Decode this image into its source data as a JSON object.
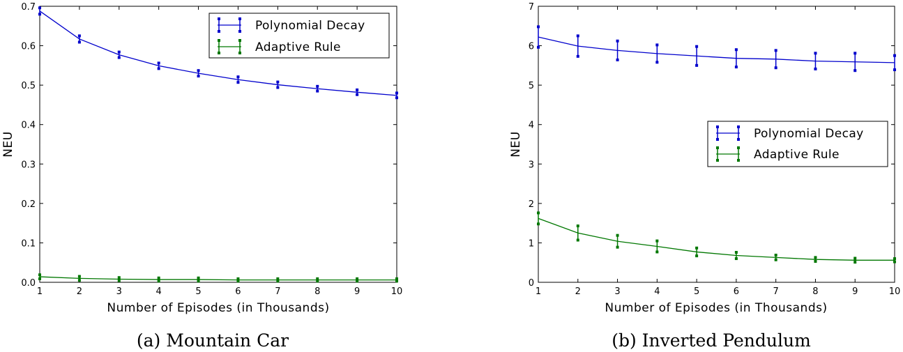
{
  "chart_data": [
    {
      "type": "line",
      "caption": "(a) Mountain Car",
      "xlabel": "Number of Episodes (in Thousands)",
      "ylabel": "NEU",
      "xlim": [
        1,
        10
      ],
      "ylim": [
        0,
        0.7
      ],
      "xticks": [
        "1",
        "2",
        "3",
        "4",
        "5",
        "6",
        "7",
        "8",
        "9",
        "10"
      ],
      "yticks": [
        "0.0",
        "0.1",
        "0.2",
        "0.3",
        "0.4",
        "0.5",
        "0.6",
        "0.7"
      ],
      "legend_position": "top-right",
      "x": [
        1,
        2,
        3,
        4,
        5,
        6,
        7,
        8,
        9,
        10
      ],
      "series": [
        {
          "name": "Polynomial Decay",
          "color": "#0000cc",
          "values": [
            0.688,
            0.617,
            0.577,
            0.549,
            0.53,
            0.514,
            0.501,
            0.491,
            0.482,
            0.474
          ],
          "errors": [
            0.008,
            0.008,
            0.007,
            0.007,
            0.007,
            0.007,
            0.007,
            0.006,
            0.006,
            0.006
          ]
        },
        {
          "name": "Adaptive Rule",
          "color": "#007700",
          "values": [
            0.014,
            0.01,
            0.008,
            0.007,
            0.007,
            0.006,
            0.006,
            0.006,
            0.006,
            0.006
          ],
          "errors": [
            0.005,
            0.005,
            0.004,
            0.004,
            0.004,
            0.003,
            0.003,
            0.003,
            0.003,
            0.003
          ]
        }
      ]
    },
    {
      "type": "line",
      "caption": "(b) Inverted Pendulum",
      "xlabel": "Number of Episodes (in Thousands)",
      "ylabel": "NEU",
      "xlim": [
        1,
        10
      ],
      "ylim": [
        0,
        7
      ],
      "xticks": [
        "1",
        "2",
        "3",
        "4",
        "5",
        "6",
        "7",
        "8",
        "9",
        "10"
      ],
      "yticks": [
        "0",
        "1",
        "2",
        "3",
        "4",
        "5",
        "6",
        "7"
      ],
      "legend_position": "center-right",
      "x": [
        1,
        2,
        3,
        4,
        5,
        6,
        7,
        8,
        9,
        10
      ],
      "series": [
        {
          "name": "Polynomial Decay",
          "color": "#0000cc",
          "values": [
            6.22,
            5.99,
            5.88,
            5.8,
            5.74,
            5.68,
            5.66,
            5.61,
            5.59,
            5.57
          ],
          "errors": [
            0.26,
            0.26,
            0.24,
            0.22,
            0.24,
            0.22,
            0.22,
            0.2,
            0.22,
            0.18
          ]
        },
        {
          "name": "Adaptive Rule",
          "color": "#007700",
          "values": [
            1.62,
            1.25,
            1.04,
            0.91,
            0.77,
            0.68,
            0.63,
            0.58,
            0.56,
            0.56
          ],
          "errors": [
            0.14,
            0.18,
            0.15,
            0.14,
            0.1,
            0.08,
            0.06,
            0.05,
            0.05,
            0.04
          ]
        }
      ]
    }
  ]
}
